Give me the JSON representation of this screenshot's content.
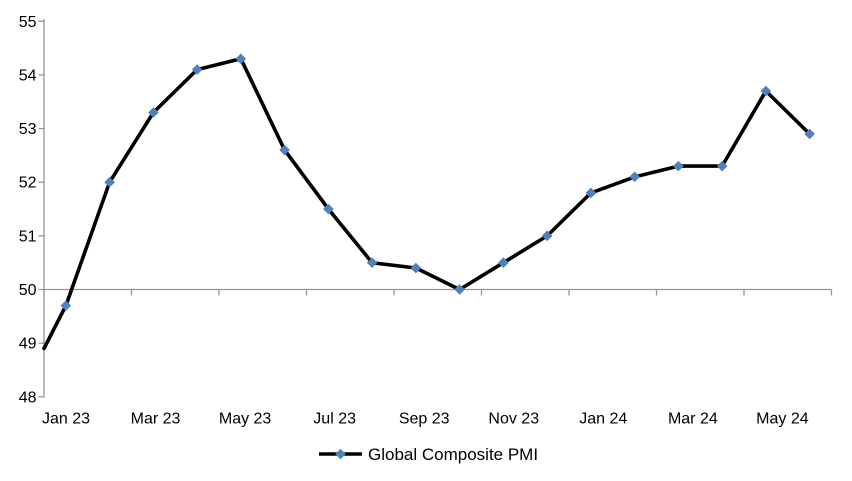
{
  "chart_data": {
    "type": "line",
    "series": [
      {
        "name": "Global Composite PMI",
        "categories": [
          "Jan 23",
          "Feb 23",
          "Mar 23",
          "Apr 23",
          "May 23",
          "Jun 23",
          "Jul 23",
          "Aug 23",
          "Sep 23",
          "Oct 23",
          "Nov 23",
          "Dec 23",
          "Jan 24",
          "Feb 24",
          "Mar 24",
          "Apr 24",
          "May 24",
          "Jun 24"
        ],
        "values": [
          49.7,
          52.0,
          53.3,
          54.1,
          54.3,
          52.6,
          51.5,
          50.5,
          50.4,
          50.0,
          50.5,
          51.0,
          51.8,
          52.1,
          52.3,
          52.3,
          53.7,
          52.9
        ],
        "axis_entry_value": 48.9,
        "line_color": "#000000",
        "marker": "diamond",
        "marker_color": "#4F81BD"
      }
    ],
    "x_tick_labels": [
      "Jan 23",
      "Mar 23",
      "May 23",
      "Jul 23",
      "Sep 23",
      "Nov 23",
      "Jan 24",
      "Mar 24",
      "May 24"
    ],
    "y_ticks": [
      55,
      54,
      53,
      52,
      51,
      50,
      49,
      48
    ],
    "ylim": [
      48,
      55
    ],
    "x_axis_cross": 50,
    "grid": "off",
    "axis_color": "#969696",
    "text_color": "#000000",
    "background": "#FFFFFF",
    "legend": {
      "label": "Global Composite PMI",
      "position": "bottom-center"
    }
  }
}
